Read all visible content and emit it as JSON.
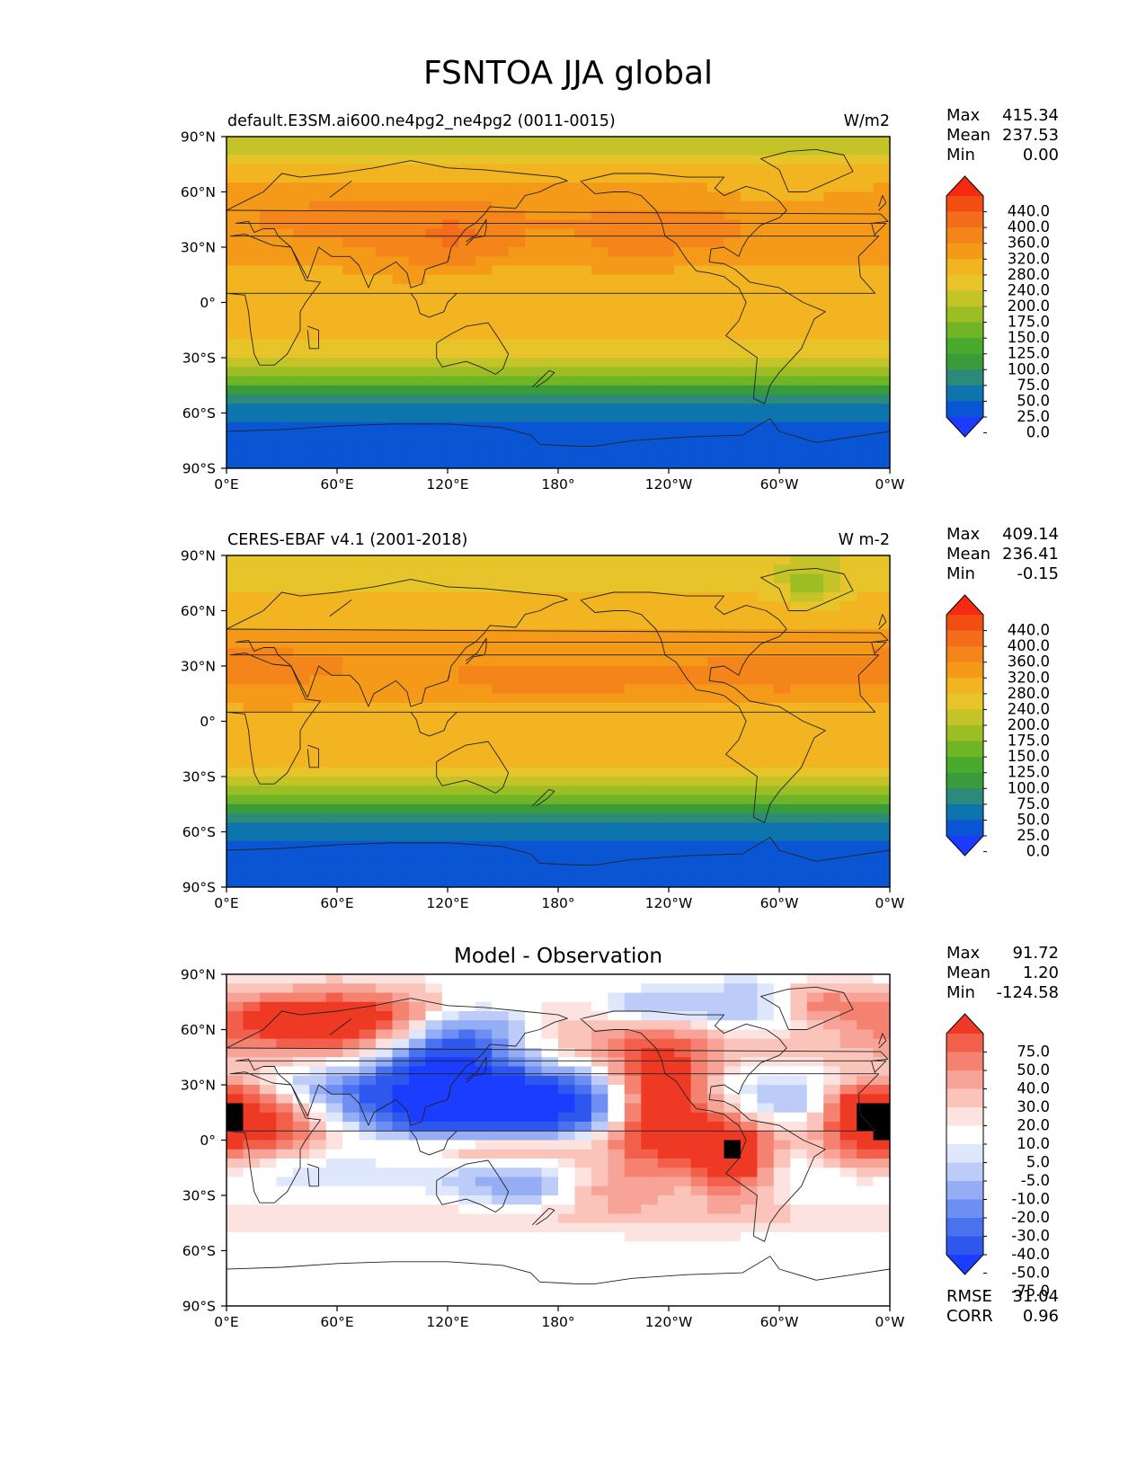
{
  "figure_title": "FSNTOA JJA global",
  "lon_ticks": [
    "0°E",
    "60°E",
    "120°E",
    "180°",
    "120°W",
    "60°W",
    "0°W"
  ],
  "lat_ticks": [
    "90°N",
    "60°N",
    "30°N",
    "0°",
    "30°S",
    "60°S",
    "90°S"
  ],
  "colors": {
    "abs_levels": [
      "#1b3cff",
      "#0a55d4",
      "#0d74ad",
      "#2b8a7a",
      "#3a9b3b",
      "#4aaa2d",
      "#6fb526",
      "#9cbe24",
      "#c4c428",
      "#e6c42a",
      "#f3b422",
      "#f59a18",
      "#f4851a",
      "#f46d1a",
      "#f24e14",
      "#f52a10"
    ],
    "diff_levels": [
      "#1a3dff",
      "#2e57ee",
      "#4a72ef",
      "#6d8ef2",
      "#95adf5",
      "#bccbf8",
      "#dfe7fc",
      "#ffffff",
      "#fde3df",
      "#fbc4bb",
      "#f8a397",
      "#f58170",
      "#f2604c",
      "#ee3a24"
    ],
    "land_line": "#222222"
  },
  "chart_data": [
    {
      "type": "heatmap",
      "name": "model",
      "title": "default.E3SM.ai600.ne4pg2_ne4pg2 (0011-0015)",
      "units": "W/m2",
      "stats": {
        "max_label": "Max",
        "max": "415.34",
        "mean_label": "Mean",
        "mean": "237.53",
        "min_label": "Min",
        "min": "0.00"
      },
      "colorbar_labels": [
        "440.0",
        "400.0",
        "360.0",
        "320.0",
        "280.0",
        "240.0",
        "200.0",
        "175.0",
        "150.0",
        "125.0",
        "100.0",
        "75.0",
        "50.0",
        "25.0",
        "0.0"
      ],
      "xlim": [
        0,
        360
      ],
      "ylim": [
        -90,
        90
      ],
      "zonal_profile": [
        [
          90,
          188
        ],
        [
          80,
          198
        ],
        [
          70,
          262
        ],
        [
          60,
          292
        ],
        [
          45,
          318
        ],
        [
          30,
          300
        ],
        [
          15,
          268
        ],
        [
          0,
          262
        ],
        [
          -10,
          252
        ],
        [
          -20,
          242
        ],
        [
          -30,
          210
        ],
        [
          -40,
          150
        ],
        [
          -50,
          75
        ],
        [
          -60,
          40
        ],
        [
          -70,
          12
        ],
        [
          -80,
          4
        ],
        [
          -90,
          0
        ]
      ],
      "anomalies": [
        [
          125,
          32,
          22,
          14,
          55
        ],
        [
          220,
          28,
          22,
          12,
          35
        ],
        [
          260,
          42,
          18,
          10,
          25
        ],
        [
          70,
          45,
          30,
          12,
          25
        ],
        [
          145,
          8,
          35,
          10,
          -20
        ],
        [
          240,
          6,
          25,
          8,
          -15
        ],
        [
          90,
          20,
          20,
          10,
          15
        ],
        [
          300,
          55,
          30,
          10,
          -25
        ]
      ]
    },
    {
      "type": "heatmap",
      "name": "observation",
      "title": "CERES-EBAF v4.1 (2001-2018)",
      "units": "W m-2",
      "stats": {
        "max_label": "Max",
        "max": "409.14",
        "mean_label": "Mean",
        "mean": "236.41",
        "min_label": "Min",
        "min": "-0.15"
      },
      "colorbar_labels": [
        "440.0",
        "400.0",
        "360.0",
        "320.0",
        "280.0",
        "240.0",
        "200.0",
        "175.0",
        "150.0",
        "125.0",
        "100.0",
        "75.0",
        "50.0",
        "25.0",
        "0.0"
      ],
      "xlim": [
        0,
        360
      ],
      "ylim": [
        -90,
        90
      ],
      "zonal_profile": [
        [
          90,
          205
        ],
        [
          80,
          210
        ],
        [
          70,
          238
        ],
        [
          60,
          262
        ],
        [
          45,
          292
        ],
        [
          30,
          312
        ],
        [
          15,
          296
        ],
        [
          0,
          258
        ],
        [
          -10,
          268
        ],
        [
          -20,
          250
        ],
        [
          -30,
          212
        ],
        [
          -40,
          150
        ],
        [
          -50,
          78
        ],
        [
          -60,
          40
        ],
        [
          -70,
          12
        ],
        [
          -80,
          4
        ],
        [
          -90,
          0
        ]
      ],
      "anomalies": [
        [
          180,
          18,
          60,
          10,
          25
        ],
        [
          315,
          25,
          40,
          12,
          25
        ],
        [
          25,
          30,
          25,
          10,
          25
        ],
        [
          318,
          72,
          12,
          8,
          -70
        ],
        [
          200,
          4,
          60,
          5,
          -20
        ],
        [
          330,
          6,
          20,
          6,
          -15
        ]
      ]
    },
    {
      "type": "heatmap",
      "name": "difference",
      "title": "Model - Observation",
      "units": "",
      "stats": {
        "max_label": "Max",
        "max": "91.72",
        "mean_label": "Mean",
        "mean": "1.20",
        "min_label": "Min",
        "min": "-124.58"
      },
      "colorbar_labels": [
        "75.0",
        "50.0",
        "40.0",
        "30.0",
        "20.0",
        "10.0",
        "5.0",
        "-5.0",
        "-10.0",
        "-20.0",
        "-30.0",
        "-40.0",
        "-50.0",
        "-75.0"
      ],
      "extra_stats": {
        "rmse_label": "RMSE",
        "rmse": "31.04",
        "corr_label": "CORR",
        "corr": "0.96"
      },
      "xlim": [
        0,
        360
      ],
      "ylim": [
        -90,
        90
      ],
      "zonal_profile": [
        [
          90,
          0
        ],
        [
          80,
          10
        ],
        [
          70,
          30
        ],
        [
          60,
          28
        ],
        [
          45,
          10
        ],
        [
          30,
          -8
        ],
        [
          15,
          0
        ],
        [
          0,
          10
        ],
        [
          -10,
          0
        ],
        [
          -20,
          -5
        ],
        [
          -30,
          0
        ],
        [
          -40,
          10
        ],
        [
          -50,
          5
        ],
        [
          -60,
          0
        ],
        [
          -90,
          0
        ]
      ],
      "anomalies": [
        [
          145,
          18,
          48,
          12,
          -115
        ],
        [
          120,
          45,
          25,
          15,
          -80
        ],
        [
          235,
          20,
          20,
          25,
          85
        ],
        [
          275,
          -10,
          15,
          15,
          70
        ],
        [
          20,
          10,
          25,
          15,
          50
        ],
        [
          345,
          5,
          15,
          15,
          40
        ],
        [
          350,
          20,
          20,
          10,
          45
        ],
        [
          320,
          75,
          18,
          8,
          45
        ],
        [
          300,
          70,
          35,
          10,
          -50
        ],
        [
          230,
          70,
          25,
          8,
          -45
        ],
        [
          140,
          65,
          30,
          10,
          -40
        ],
        [
          60,
          65,
          50,
          12,
          45
        ],
        [
          50,
          30,
          25,
          10,
          -15
        ],
        [
          160,
          -25,
          25,
          8,
          -25
        ],
        [
          150,
          -5,
          30,
          6,
          30
        ],
        [
          310,
          20,
          20,
          8,
          -20
        ],
        [
          45,
          -15,
          25,
          10,
          -10
        ],
        [
          205,
          -25,
          20,
          10,
          25
        ]
      ]
    }
  ]
}
